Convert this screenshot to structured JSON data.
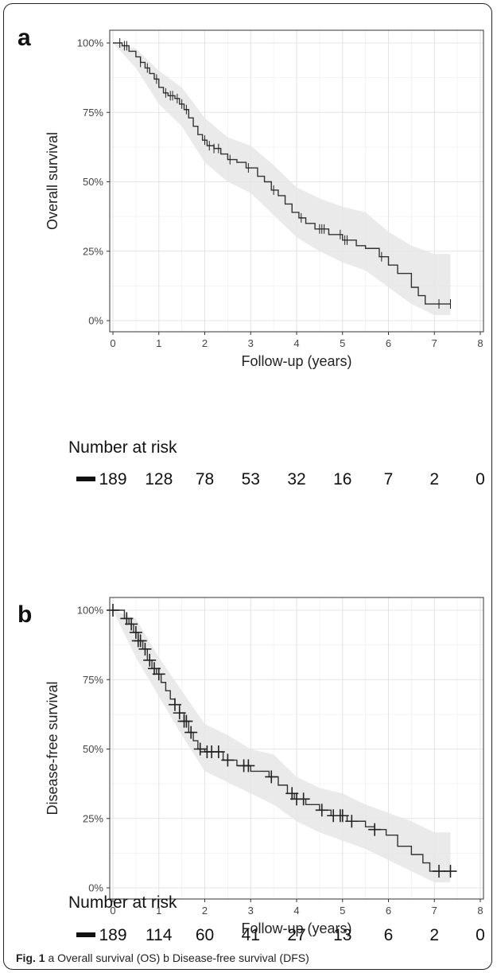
{
  "chart_data": [
    {
      "type": "line",
      "panel_label": "a",
      "xlabel": "Follow-up (years)",
      "ylabel": "Overall survival",
      "xlim": [
        0,
        8
      ],
      "ylim": [
        0,
        1
      ],
      "x_ticks": [
        "0",
        "1",
        "2",
        "3",
        "4",
        "5",
        "6",
        "7",
        "8"
      ],
      "y_ticks": [
        "0%",
        "25%",
        "50%",
        "75%",
        "100%"
      ],
      "grid": true,
      "steps": [
        [
          0,
          1.0
        ],
        [
          0.2,
          0.99
        ],
        [
          0.35,
          0.97
        ],
        [
          0.5,
          0.95
        ],
        [
          0.6,
          0.93
        ],
        [
          0.7,
          0.91
        ],
        [
          0.8,
          0.89
        ],
        [
          0.9,
          0.87
        ],
        [
          1.0,
          0.84
        ],
        [
          1.1,
          0.82
        ],
        [
          1.2,
          0.81
        ],
        [
          1.35,
          0.8
        ],
        [
          1.45,
          0.78
        ],
        [
          1.55,
          0.76
        ],
        [
          1.65,
          0.73
        ],
        [
          1.75,
          0.7
        ],
        [
          1.85,
          0.67
        ],
        [
          1.95,
          0.65
        ],
        [
          2.05,
          0.63
        ],
        [
          2.2,
          0.62
        ],
        [
          2.35,
          0.6
        ],
        [
          2.5,
          0.58
        ],
        [
          2.7,
          0.57
        ],
        [
          2.9,
          0.55
        ],
        [
          3.15,
          0.52
        ],
        [
          3.3,
          0.5
        ],
        [
          3.45,
          0.47
        ],
        [
          3.6,
          0.45
        ],
        [
          3.75,
          0.42
        ],
        [
          3.9,
          0.39
        ],
        [
          4.05,
          0.37
        ],
        [
          4.2,
          0.35
        ],
        [
          4.4,
          0.33
        ],
        [
          4.7,
          0.31
        ],
        [
          5.0,
          0.29
        ],
        [
          5.3,
          0.27
        ],
        [
          5.5,
          0.26
        ],
        [
          5.8,
          0.23
        ],
        [
          6.0,
          0.2
        ],
        [
          6.2,
          0.17
        ],
        [
          6.5,
          0.12
        ],
        [
          6.65,
          0.09
        ],
        [
          6.8,
          0.06
        ],
        [
          7.35,
          0.06
        ]
      ],
      "upper": [
        [
          0,
          1.0
        ],
        [
          0.5,
          0.98
        ],
        [
          1.0,
          0.9
        ],
        [
          1.5,
          0.84
        ],
        [
          2.0,
          0.73
        ],
        [
          2.5,
          0.66
        ],
        [
          3.0,
          0.63
        ],
        [
          3.5,
          0.56
        ],
        [
          4.0,
          0.48
        ],
        [
          4.5,
          0.44
        ],
        [
          5.0,
          0.41
        ],
        [
          5.5,
          0.39
        ],
        [
          6.0,
          0.32
        ],
        [
          6.5,
          0.27
        ],
        [
          7.0,
          0.24
        ],
        [
          7.35,
          0.24
        ]
      ],
      "lower": [
        [
          0,
          1.0
        ],
        [
          0.5,
          0.91
        ],
        [
          1.0,
          0.78
        ],
        [
          1.5,
          0.7
        ],
        [
          2.0,
          0.57
        ],
        [
          2.5,
          0.5
        ],
        [
          3.0,
          0.46
        ],
        [
          3.5,
          0.38
        ],
        [
          4.0,
          0.3
        ],
        [
          4.5,
          0.25
        ],
        [
          5.0,
          0.21
        ],
        [
          5.5,
          0.18
        ],
        [
          6.0,
          0.12
        ],
        [
          6.5,
          0.06
        ],
        [
          7.0,
          0.02
        ],
        [
          7.35,
          0.02
        ]
      ],
      "censored_x": [
        0.15,
        0.25,
        0.3,
        0.6,
        0.75,
        0.95,
        1.15,
        1.25,
        1.3,
        1.4,
        1.5,
        1.6,
        2.0,
        2.1,
        2.2,
        2.3,
        2.55,
        2.95,
        3.5,
        4.1,
        4.5,
        4.55,
        4.6,
        4.95,
        5.05,
        5.1,
        5.85,
        7.1,
        7.35
      ],
      "risk_title": "Number at risk",
      "risk_numbers": [
        "189",
        "128",
        "78",
        "53",
        "32",
        "16",
        "7",
        "2",
        "0"
      ]
    },
    {
      "type": "line",
      "panel_label": "b",
      "xlabel": "Follow-up (years)",
      "ylabel": "Disease-free survival",
      "xlim": [
        0,
        8
      ],
      "ylim": [
        0,
        1
      ],
      "x_ticks": [
        "0",
        "1",
        "2",
        "3",
        "4",
        "5",
        "6",
        "7",
        "8"
      ],
      "y_ticks": [
        "0%",
        "25%",
        "50%",
        "75%",
        "100%"
      ],
      "grid": true,
      "steps": [
        [
          0,
          1.0
        ],
        [
          0.25,
          0.97
        ],
        [
          0.35,
          0.95
        ],
        [
          0.45,
          0.92
        ],
        [
          0.55,
          0.89
        ],
        [
          0.65,
          0.86
        ],
        [
          0.75,
          0.82
        ],
        [
          0.85,
          0.79
        ],
        [
          0.95,
          0.77
        ],
        [
          1.05,
          0.74
        ],
        [
          1.15,
          0.71
        ],
        [
          1.25,
          0.68
        ],
        [
          1.35,
          0.66
        ],
        [
          1.45,
          0.63
        ],
        [
          1.55,
          0.6
        ],
        [
          1.65,
          0.56
        ],
        [
          1.75,
          0.53
        ],
        [
          1.85,
          0.5
        ],
        [
          2.0,
          0.49
        ],
        [
          2.4,
          0.46
        ],
        [
          2.7,
          0.44
        ],
        [
          3.0,
          0.42
        ],
        [
          3.4,
          0.4
        ],
        [
          3.6,
          0.37
        ],
        [
          3.8,
          0.34
        ],
        [
          3.95,
          0.32
        ],
        [
          4.2,
          0.3
        ],
        [
          4.5,
          0.28
        ],
        [
          4.75,
          0.26
        ],
        [
          5.1,
          0.24
        ],
        [
          5.5,
          0.22
        ],
        [
          5.7,
          0.21
        ],
        [
          5.95,
          0.19
        ],
        [
          6.2,
          0.15
        ],
        [
          6.5,
          0.12
        ],
        [
          6.75,
          0.09
        ],
        [
          6.9,
          0.06
        ],
        [
          7.35,
          0.06
        ]
      ],
      "upper": [
        [
          0,
          1.0
        ],
        [
          0.5,
          0.97
        ],
        [
          1.0,
          0.83
        ],
        [
          1.5,
          0.71
        ],
        [
          2.0,
          0.59
        ],
        [
          2.5,
          0.55
        ],
        [
          3.0,
          0.5
        ],
        [
          3.5,
          0.48
        ],
        [
          4.0,
          0.4
        ],
        [
          4.5,
          0.36
        ],
        [
          5.0,
          0.34
        ],
        [
          5.5,
          0.3
        ],
        [
          6.0,
          0.27
        ],
        [
          6.5,
          0.24
        ],
        [
          7.0,
          0.2
        ],
        [
          7.35,
          0.2
        ]
      ],
      "lower": [
        [
          0,
          1.0
        ],
        [
          0.5,
          0.83
        ],
        [
          1.0,
          0.69
        ],
        [
          1.5,
          0.55
        ],
        [
          2.0,
          0.42
        ],
        [
          2.5,
          0.38
        ],
        [
          3.0,
          0.34
        ],
        [
          3.5,
          0.3
        ],
        [
          4.0,
          0.24
        ],
        [
          4.5,
          0.2
        ],
        [
          5.0,
          0.17
        ],
        [
          5.5,
          0.14
        ],
        [
          6.0,
          0.1
        ],
        [
          6.5,
          0.06
        ],
        [
          7.0,
          0.02
        ],
        [
          7.35,
          0.02
        ]
      ],
      "censored_x": [
        0.0,
        0.3,
        0.4,
        0.5,
        0.55,
        0.6,
        0.7,
        0.8,
        0.9,
        1.0,
        1.35,
        1.45,
        1.55,
        1.6,
        1.7,
        1.9,
        2.05,
        2.15,
        2.3,
        2.5,
        2.85,
        2.95,
        3.45,
        3.9,
        4.0,
        4.15,
        4.55,
        4.8,
        4.95,
        5.0,
        5.2,
        5.7,
        7.1,
        7.35
      ],
      "risk_title": "Number at risk",
      "risk_numbers": [
        "189",
        "114",
        "60",
        "41",
        "27",
        "13",
        "6",
        "2",
        "0"
      ]
    }
  ],
  "caption": {
    "label": "Fig. 1",
    "text": " a Overall survival (OS) b Disease-free survival (DFS)"
  }
}
